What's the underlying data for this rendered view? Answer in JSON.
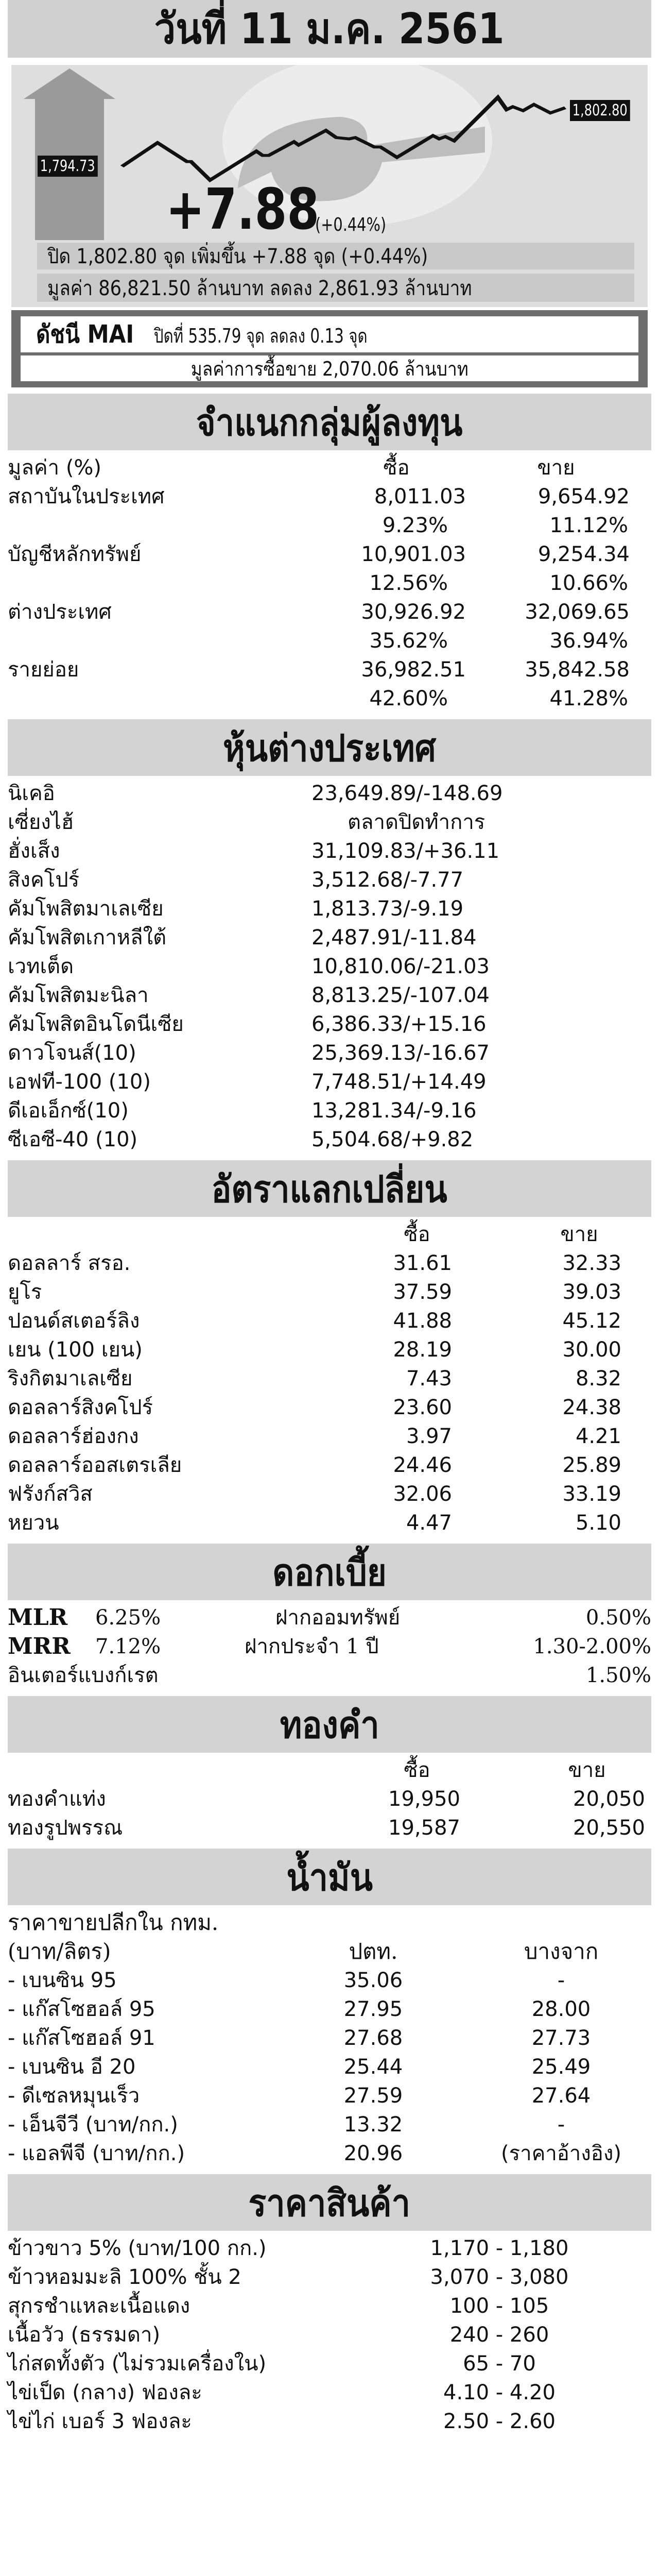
{
  "header": {
    "date_title": "วันที่ 11 ม.ค. 2561"
  },
  "set_index": {
    "open_label": "1,794.73",
    "close_label": "1,802.80",
    "change": "+7.88",
    "change_pct": "(+0.44%)",
    "summary_line": "ปิด 1,802.80 จุด เพิ่มขึ้น +7.88 จุด (+0.44%)",
    "value_line": "มูลค่า 86,821.50 ล้านบาท ลดลง 2,861.93 ล้านบาท",
    "trend": "up"
  },
  "mai": {
    "title": "ดัชนี MAI",
    "line": "ปิดที่ 535.79 จุด ลดลง 0.13 จุด",
    "value_line": "มูลค่าการซื้อขาย 2,070.06 ล้านบาท"
  },
  "investors": {
    "title": "จำแนกกลุ่มผู้ลงทุน",
    "unit_label": "มูลค่า (%)",
    "col_buy": "ซื้อ",
    "col_sell": "ขาย",
    "rows": [
      {
        "label": "สถาบันในประเทศ",
        "buy": "8,011.03",
        "sell": "9,654.92",
        "buy_pct": "9.23%",
        "sell_pct": "11.12%"
      },
      {
        "label": "บัญชีหลักทรัพย์",
        "buy": "10,901.03",
        "sell": "9,254.34",
        "buy_pct": "12.56%",
        "sell_pct": "10.66%"
      },
      {
        "label": "ต่างประเทศ",
        "buy": "30,926.92",
        "sell": "32,069.65",
        "buy_pct": "35.62%",
        "sell_pct": "36.94%"
      },
      {
        "label": "รายย่อย",
        "buy": "36,982.51",
        "sell": "35,842.58",
        "buy_pct": "42.60%",
        "sell_pct": "41.28%"
      }
    ]
  },
  "foreign_stocks": {
    "title": "หุ้นต่างประเทศ",
    "rows": [
      {
        "label": "นิเคอิ",
        "value": "23,649.89/-148.69"
      },
      {
        "label": "เซี่ยงไฮ้",
        "value": "ตลาดปิดทำการ"
      },
      {
        "label": "ฮั่งเส็ง",
        "value": "31,109.83/+36.11"
      },
      {
        "label": "สิงคโปร์",
        "value": "3,512.68/-7.77"
      },
      {
        "label": "คัมโพสิตมาเลเซีย",
        "value": "1,813.73/-9.19"
      },
      {
        "label": "คัมโพสิตเกาหลีใต้",
        "value": "2,487.91/-11.84"
      },
      {
        "label": "เวทเต็ด",
        "value": "10,810.06/-21.03"
      },
      {
        "label": "คัมโพสิตมะนิลา",
        "value": "8,813.25/-107.04"
      },
      {
        "label": "คัมโพสิตอินโดนีเซีย",
        "value": "6,386.33/+15.16"
      },
      {
        "label": "ดาวโจนส์(10)",
        "value": "25,369.13/-16.67"
      },
      {
        "label": "เอฟที-100 (10)",
        "value": "7,748.51/+14.49"
      },
      {
        "label": "ดีเอเอ็กซ์(10)",
        "value": "13,281.34/-9.16"
      },
      {
        "label": "ซีเอซี-40 (10)",
        "value": "5,504.68/+9.82"
      }
    ]
  },
  "exchange": {
    "title": "อัตราแลกเปลี่ยน",
    "col_buy": "ซื้อ",
    "col_sell": "ขาย",
    "rows": [
      {
        "label": "ดอลลาร์ สรอ.",
        "buy": "31.61",
        "sell": "32.33"
      },
      {
        "label": "ยูโร",
        "buy": "37.59",
        "sell": "39.03"
      },
      {
        "label": "ปอนด์สเตอร์ลิง",
        "buy": "41.88",
        "sell": "45.12"
      },
      {
        "label": "เยน (100 เยน)",
        "buy": "28.19",
        "sell": "30.00"
      },
      {
        "label": "ริงกิตมาเลเซีย",
        "buy": "7.43",
        "sell": "8.32"
      },
      {
        "label": "ดอลลาร์สิงคโปร์",
        "buy": "23.60",
        "sell": "24.38"
      },
      {
        "label": "ดอลลาร์ฮ่องกง",
        "buy": "3.97",
        "sell": "4.21"
      },
      {
        "label": "ดอลลาร์ออสเตรเลีย",
        "buy": "24.46",
        "sell": "25.89"
      },
      {
        "label": "ฟรังก์สวิส",
        "buy": "32.06",
        "sell": "33.19"
      },
      {
        "label": "หยวน",
        "buy": "4.47",
        "sell": "5.10"
      }
    ]
  },
  "interest": {
    "title": "ดอกเบี้ย",
    "rows": [
      {
        "label": "MLR",
        "rate": "6.25%",
        "label2": "ฝากออมทรัพย์",
        "rate2": "0.50%"
      },
      {
        "label": "MRR",
        "rate": "7.12%",
        "label2": "ฝากประจำ 1 ปี",
        "rate2": "1.30-2.00%"
      },
      {
        "label": "อินเตอร์แบงก์เรต",
        "rate": "",
        "label2": "",
        "rate2": "1.50%"
      }
    ]
  },
  "gold": {
    "title": "ทองคำ",
    "col_buy": "ซื้อ",
    "col_sell": "ขาย",
    "rows": [
      {
        "label": "ทองคำแท่ง",
        "buy": "19,950",
        "sell": "20,050"
      },
      {
        "label": "ทองรูปพรรณ",
        "buy": "19,587",
        "sell": "20,550"
      }
    ]
  },
  "oil": {
    "title": "น้ำมัน",
    "intro": "ราคาขายปลีกใน กทม.",
    "unit": "(บาท/ลิตร)",
    "col_ptt": "ปตท.",
    "col_bcp": "บางจาก",
    "rows": [
      {
        "label": "- เบนซิน 95",
        "ptt": "35.06",
        "bcp": "-"
      },
      {
        "label": "- แก๊สโซฮอล์ 95",
        "ptt": "27.95",
        "bcp": "28.00"
      },
      {
        "label": "- แก๊สโซฮอล์ 91",
        "ptt": "27.68",
        "bcp": "27.73"
      },
      {
        "label": "- เบนซิน อี 20",
        "ptt": "25.44",
        "bcp": "25.49"
      },
      {
        "label": "- ดีเซลหมุนเร็ว",
        "ptt": "27.59",
        "bcp": "27.64"
      },
      {
        "label": "- เอ็นจีวี (บาท/กก.)",
        "ptt": "13.32",
        "bcp": "-"
      },
      {
        "label": "- แอลพีจี (บาท/กก.)",
        "ptt": "20.96",
        "bcp": "(ราคาอ้างอิง)"
      }
    ]
  },
  "commodities": {
    "title": "ราคาสินค้า",
    "rows": [
      {
        "label": "ข้าวขาว 5% (บาท/100 กก.)",
        "price": "1,170 - 1,180"
      },
      {
        "label": "ข้าวหอมมะลิ 100% ชั้น 2",
        "price": "3,070 - 3,080"
      },
      {
        "label": "สุกรชำแหละเนื้อแดง",
        "price": "100 - 105"
      },
      {
        "label": "เนื้อวัว (ธรรมดา)",
        "price": "240 - 260"
      },
      {
        "label": "ไก่สดทั้งตัว (ไม่รวมเครื่องใน)",
        "price": "65 - 70"
      },
      {
        "label": "ไข่เป็ด (กลาง) ฟองละ",
        "price": "4.10 - 4.20"
      },
      {
        "label": "ไข่ไก่ เบอร์ 3 ฟองละ",
        "price": "2.50 - 2.60"
      }
    ]
  },
  "colors": {
    "band": "#d3d3d3",
    "panel": "#dedede",
    "arrow": "#9a9a9a",
    "mai_frame": "#6d6d6d",
    "text": "#111111"
  }
}
